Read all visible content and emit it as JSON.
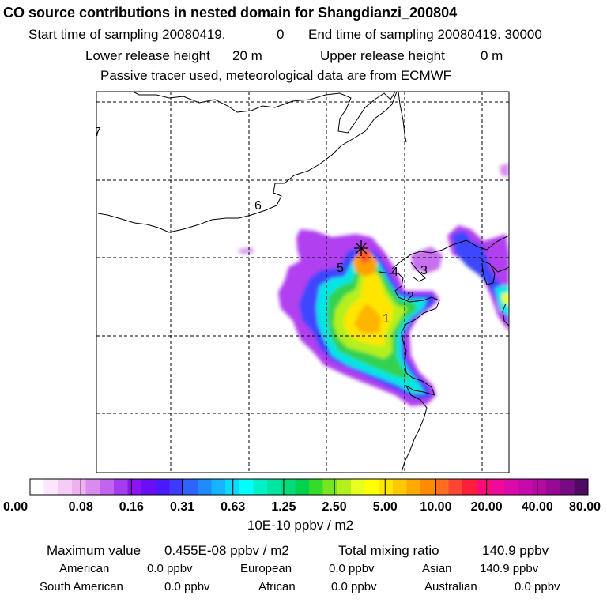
{
  "header": {
    "title": "CO  source contributions in nested domain for Shangdianzi_200804",
    "line1_a": "Start time of sampling 20080419.",
    "line1_b": "0",
    "line1_c": "End time of sampling 20080419. 30000",
    "line2_a": "Lower release height",
    "line2_b": "20 m",
    "line2_c": "Upper release height",
    "line2_d": "0 m",
    "line3": "Passive tracer used, meteorological data are from ECMWF"
  },
  "chart_data": {
    "type": "heatmap",
    "title": "CO  source contributions in nested domain for Shangdianzi_200804",
    "region_labels": [
      "1",
      "2",
      "3",
      "4",
      "5",
      "6",
      "7"
    ],
    "receptor_marker": "Shangdianzi",
    "colorbar": {
      "unit_label": "10E-10 ppbv / m2",
      "tick_labels": [
        "0.00",
        "0.08",
        "0.16",
        "0.31",
        "0.63",
        "1.25",
        "2.50",
        "5.00",
        "10.00",
        "20.00",
        "40.00",
        "80.00"
      ],
      "tick_values": [
        0.0,
        0.08,
        0.16,
        0.31,
        0.63,
        1.25,
        2.5,
        5.0,
        10.0,
        20.0,
        40.0,
        80.0
      ],
      "colors": [
        "#ffffff",
        "#fbe6fb",
        "#f5ccf5",
        "#eeb2ee",
        "#d98cf0",
        "#c364f0",
        "#a53cf0",
        "#8c14f0",
        "#6a0ff5",
        "#4b19ff",
        "#3c3cff",
        "#2d64ff",
        "#1e8cff",
        "#14b4ff",
        "#0adcff",
        "#00ffff",
        "#00f0c8",
        "#00e6a0",
        "#00dc78",
        "#00d250",
        "#32dc28",
        "#78e61e",
        "#b4f01e",
        "#e6ff1e",
        "#ffff00",
        "#ffe600",
        "#ffc800",
        "#ffaa00",
        "#ff8c00",
        "#ff6e1e",
        "#ff4632",
        "#ff1e3c",
        "#ff0a78",
        "#f00a96",
        "#dc0aaa",
        "#c80aaa",
        "#b40aa0",
        "#960a96",
        "#780a82",
        "#500a64"
      ]
    }
  },
  "footer": {
    "max_label": "Maximum value",
    "max_value": "0.455E-08 ppbv / m2",
    "total_label": "Total mixing ratio",
    "total_value": "140.9 ppbv",
    "american_label": "American",
    "american_value": "0.0 ppbv",
    "european_label": "European",
    "european_value": "0.0 ppbv",
    "asian_label": "Asian",
    "asian_value": "140.9 ppbv",
    "south_american_label": "South American",
    "south_american_value": "0.0 ppbv",
    "african_label": "African",
    "african_value": "0.0 ppbv",
    "australian_label": "Australian",
    "australian_value": "0.0 ppbv"
  }
}
